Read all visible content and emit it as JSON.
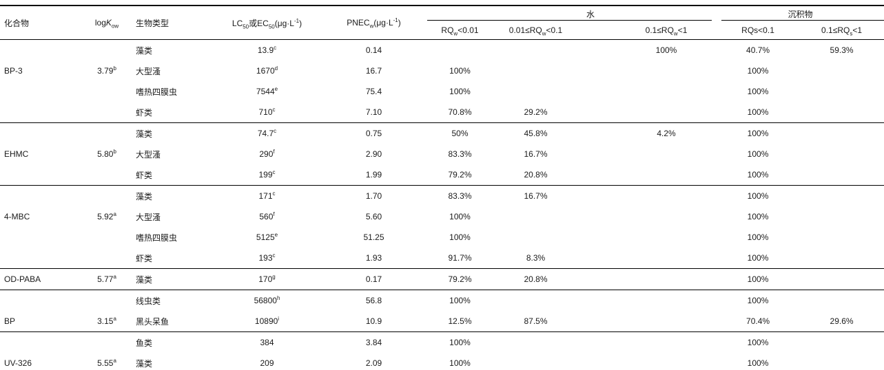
{
  "header": {
    "compound": "化合物",
    "logkow_html": "log<i>K</i><sub>ow</sub>",
    "bio_type": "生物类型",
    "lc50_html": "LC<sub>50</sub>或EC<sub>50</sub>(μg·L<sup>-1</sup>)",
    "pnec_html": "PNEC<sub>w</sub>(μg·L<sup>-1</sup>)",
    "water_group": "水",
    "sediment_group": "沉积物",
    "water_cols_html": [
      "RQ<sub>w</sub>&lt;0.01",
      "0.01≤RQ<sub>w</sub>&lt;0.1",
      "0.1≤RQ<sub>w</sub>&lt;1"
    ],
    "sediment_cols_html": [
      "RQs&lt;0.1",
      "0.1≤RQ<sub>s</sub>&lt;1"
    ]
  },
  "rows": [
    {
      "group_start": false,
      "compound": "",
      "logkow_html": "",
      "bio": "藻类",
      "lc50_html": "13.9<sup>c</sup>",
      "pnec": "0.14",
      "rqw1": "",
      "rqw2": "",
      "rqw3": "100%",
      "rqs1": "40.7%",
      "rqs2": "59.3%"
    },
    {
      "group_start": false,
      "compound": "BP-3",
      "logkow_html": "3.79<sup>b</sup>",
      "bio": "大型溞",
      "lc50_html": "1670<sup>d</sup>",
      "pnec": "16.7",
      "rqw1": "100%",
      "rqw2": "",
      "rqw3": "",
      "rqs1": "100%",
      "rqs2": ""
    },
    {
      "group_start": false,
      "compound": "",
      "logkow_html": "",
      "bio": "嗜热四膜虫",
      "lc50_html": "7544<sup>e</sup>",
      "pnec": "75.4",
      "rqw1": "100%",
      "rqw2": "",
      "rqw3": "",
      "rqs1": "100%",
      "rqs2": ""
    },
    {
      "group_start": false,
      "compound": "",
      "logkow_html": "",
      "bio": "虾类",
      "lc50_html": "710<sup>c</sup>",
      "pnec": "7.10",
      "rqw1": "70.8%",
      "rqw2": "29.2%",
      "rqw3": "",
      "rqs1": "100%",
      "rqs2": ""
    },
    {
      "group_start": true,
      "compound": "",
      "logkow_html": "",
      "bio": "藻类",
      "lc50_html": "74.7<sup>c</sup>",
      "pnec": "0.75",
      "rqw1": "50%",
      "rqw2": "45.8%",
      "rqw3": "4.2%",
      "rqs1": "100%",
      "rqs2": ""
    },
    {
      "group_start": false,
      "compound": "EHMC",
      "logkow_html": "5.80<sup>b</sup>",
      "bio": "大型溞",
      "lc50_html": "290<sup>f</sup>",
      "pnec": "2.90",
      "rqw1": "83.3%",
      "rqw2": "16.7%",
      "rqw3": "",
      "rqs1": "100%",
      "rqs2": ""
    },
    {
      "group_start": false,
      "compound": "",
      "logkow_html": "",
      "bio": "虾类",
      "lc50_html": "199<sup>c</sup>",
      "pnec": "1.99",
      "rqw1": "79.2%",
      "rqw2": "20.8%",
      "rqw3": "",
      "rqs1": "100%",
      "rqs2": ""
    },
    {
      "group_start": true,
      "compound": "",
      "logkow_html": "",
      "bio": "藻类",
      "lc50_html": "171<sup>c</sup>",
      "pnec": "1.70",
      "rqw1": "83.3%",
      "rqw2": "16.7%",
      "rqw3": "",
      "rqs1": "100%",
      "rqs2": ""
    },
    {
      "group_start": false,
      "compound": "4-MBC",
      "logkow_html": "5.92<sup>a</sup>",
      "bio": "大型溞",
      "lc50_html": "560<sup>f</sup>",
      "pnec": "5.60",
      "rqw1": "100%",
      "rqw2": "",
      "rqw3": "",
      "rqs1": "100%",
      "rqs2": ""
    },
    {
      "group_start": false,
      "compound": "",
      "logkow_html": "",
      "bio": "嗜热四膜虫",
      "lc50_html": "5125<sup>e</sup>",
      "pnec": "51.25",
      "rqw1": "100%",
      "rqw2": "",
      "rqw3": "",
      "rqs1": "100%",
      "rqs2": ""
    },
    {
      "group_start": false,
      "compound": "",
      "logkow_html": "",
      "bio": "虾类",
      "lc50_html": "193<sup>c</sup>",
      "pnec": "1.93",
      "rqw1": "91.7%",
      "rqw2": "8.3%",
      "rqw3": "",
      "rqs1": "100%",
      "rqs2": ""
    },
    {
      "group_start": true,
      "compound": "OD-PABA",
      "logkow_html": "5.77<sup>a</sup>",
      "bio": "藻类",
      "lc50_html": "170<sup>g</sup>",
      "pnec": "0.17",
      "rqw1": "79.2%",
      "rqw2": "20.8%",
      "rqw3": "",
      "rqs1": "100%",
      "rqs2": ""
    },
    {
      "group_start": true,
      "compound": "",
      "logkow_html": "",
      "bio": "线虫类",
      "lc50_html": "56800<sup>h</sup>",
      "pnec": "56.8",
      "rqw1": "100%",
      "rqw2": "",
      "rqw3": "",
      "rqs1": "100%",
      "rqs2": ""
    },
    {
      "group_start": false,
      "compound": "BP",
      "logkow_html": "3.15<sup>a</sup>",
      "bio": "黑头呆鱼",
      "lc50_html": "10890<sup>i</sup>",
      "pnec": "10.9",
      "rqw1": "12.5%",
      "rqw2": "87.5%",
      "rqw3": "",
      "rqs1": "70.4%",
      "rqs2": "29.6%"
    },
    {
      "group_start": true,
      "compound": "",
      "logkow_html": "",
      "bio": "鱼类",
      "lc50_html": "384",
      "pnec": "3.84",
      "rqw1": "100%",
      "rqw2": "",
      "rqw3": "",
      "rqs1": "100%",
      "rqs2": ""
    },
    {
      "group_start": false,
      "compound": "UV-326",
      "logkow_html": "5.55<sup>a</sup>",
      "bio": "藻类",
      "lc50_html": "209",
      "pnec": "2.09",
      "rqw1": "100%",
      "rqw2": "",
      "rqw3": "",
      "rqs1": "100%",
      "rqs2": ""
    }
  ]
}
